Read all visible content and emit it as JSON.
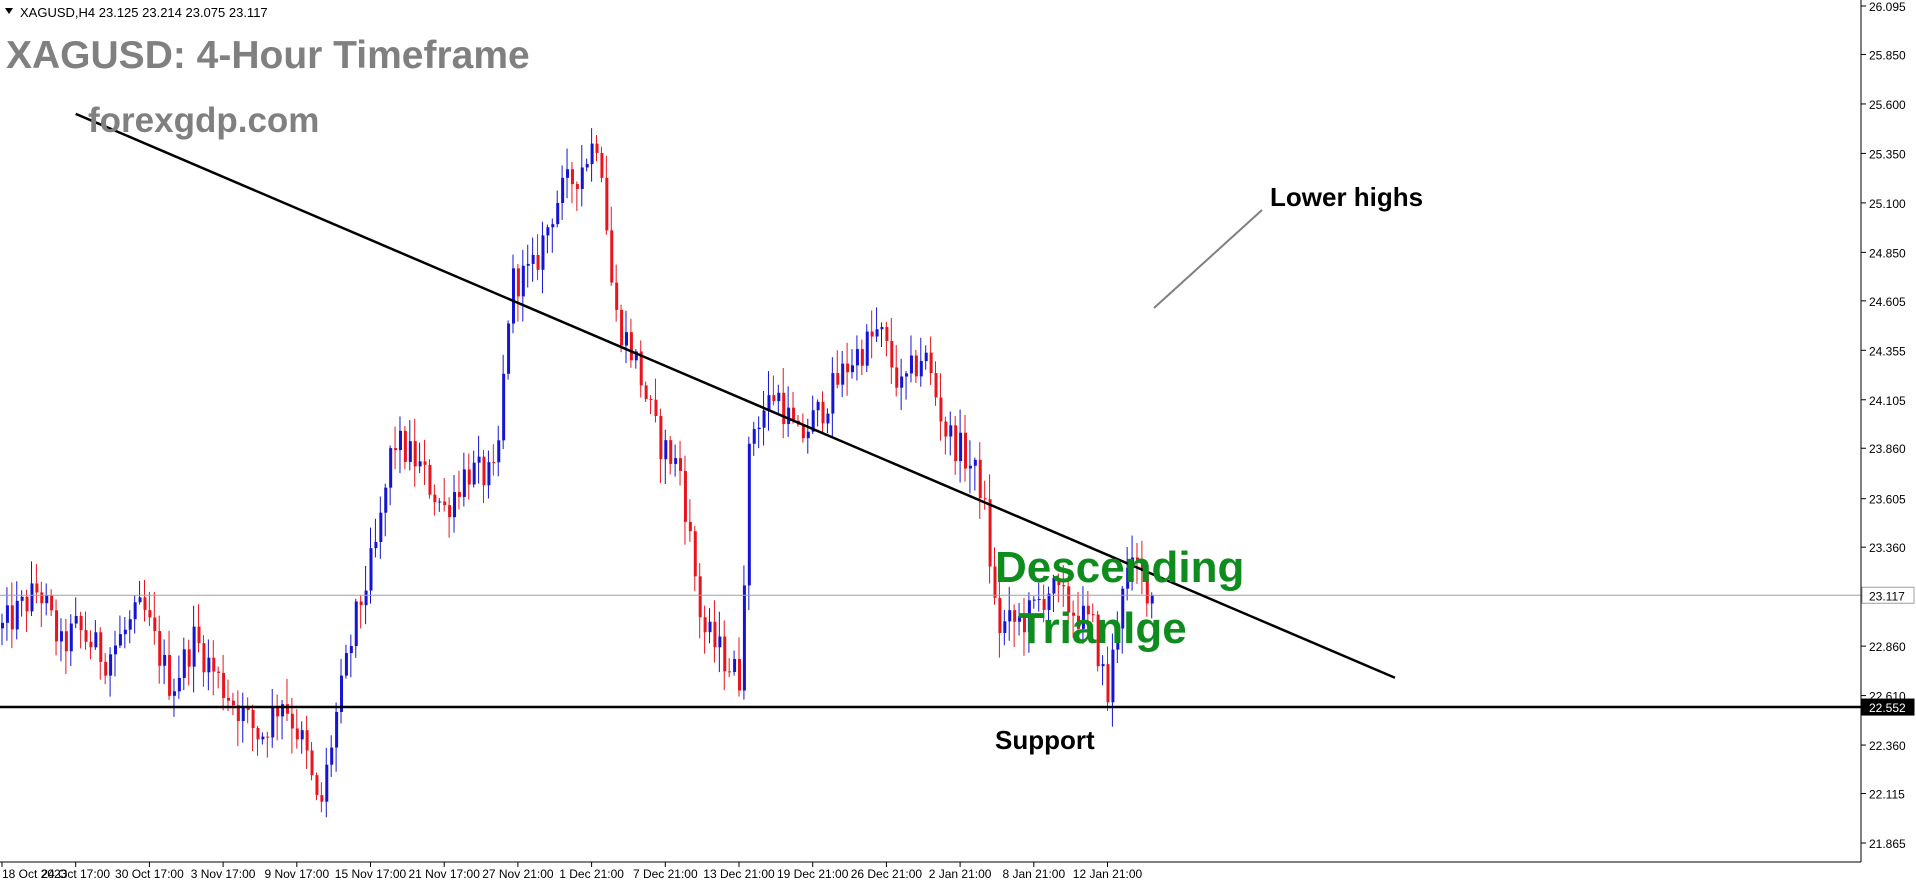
{
  "header": {
    "symbol_line": "XAGUSD,H4  23.125 23.214 23.075 23.117"
  },
  "overlay": {
    "title": "XAGUSD: 4-Hour Timeframe",
    "watermark": "forexgdp.com",
    "pattern_line1": "Descending",
    "pattern_line2": "Trianlge",
    "lower_highs_label": "Lower highs",
    "support_label": "Support"
  },
  "colors": {
    "bull": "#1414d2",
    "bear": "#e8141e",
    "pattern_text": "#0f8c1e",
    "title_text": "#808080",
    "axis": "#000000",
    "price_line": "#a0a0a0"
  },
  "chart_data": {
    "type": "candlestick",
    "title": "XAGUSD: 4-Hour Timeframe",
    "symbol": "XAGUSD",
    "timeframe": "H4",
    "ohlc_last": {
      "open": 23.125,
      "high": 23.214,
      "low": 23.075,
      "close": 23.117
    },
    "y_ticks": [
      26.095,
      25.85,
      25.6,
      25.35,
      25.1,
      24.85,
      24.605,
      24.355,
      24.105,
      23.86,
      23.605,
      23.36,
      23.117,
      22.86,
      22.61,
      22.552,
      22.36,
      22.115,
      21.865
    ],
    "ylim": [
      21.8,
      26.12
    ],
    "x_ticks": [
      "18 Oct 2023",
      "24 Oct 17:00",
      "30 Oct 17:00",
      "3 Nov 17:00",
      "9 Nov 17:00",
      "15 Nov 17:00",
      "21 Nov 17:00",
      "27 Nov 21:00",
      "1 Dec 21:00",
      "7 Dec 21:00",
      "13 Dec 21:00",
      "19 Dec 21:00",
      "26 Dec 21:00",
      "2 Jan 21:00",
      "8 Jan 21:00",
      "12 Jan 21:00"
    ],
    "current_price": 23.117,
    "support_level": 22.552,
    "trendline": {
      "start": {
        "x": 1.0,
        "price": 25.55
      },
      "end": {
        "x": 18.9,
        "price": 22.7
      }
    },
    "anchors": [
      {
        "x": 0.0,
        "price": 22.95
      },
      {
        "x": 0.5,
        "price": 23.15
      },
      {
        "x": 0.8,
        "price": 22.85
      },
      {
        "x": 1.0,
        "price": 22.95
      },
      {
        "x": 1.4,
        "price": 22.8
      },
      {
        "x": 1.9,
        "price": 23.05
      },
      {
        "x": 2.3,
        "price": 22.65
      },
      {
        "x": 2.6,
        "price": 22.9
      },
      {
        "x": 3.0,
        "price": 22.65
      },
      {
        "x": 3.5,
        "price": 22.4
      },
      {
        "x": 3.8,
        "price": 22.6
      },
      {
        "x": 4.1,
        "price": 22.35
      },
      {
        "x": 4.3,
        "price": 22.0
      },
      {
        "x": 4.5,
        "price": 22.45
      },
      {
        "x": 4.8,
        "price": 23.0
      },
      {
        "x": 5.1,
        "price": 23.4
      },
      {
        "x": 5.3,
        "price": 23.9
      },
      {
        "x": 5.6,
        "price": 23.8
      },
      {
        "x": 6.0,
        "price": 23.55
      },
      {
        "x": 6.3,
        "price": 23.75
      },
      {
        "x": 6.7,
        "price": 23.7
      },
      {
        "x": 6.9,
        "price": 24.7
      },
      {
        "x": 7.2,
        "price": 24.75
      },
      {
        "x": 7.5,
        "price": 25.1
      },
      {
        "x": 7.8,
        "price": 25.25
      },
      {
        "x": 8.1,
        "price": 25.45
      },
      {
        "x": 8.3,
        "price": 24.55
      },
      {
        "x": 8.6,
        "price": 24.3
      },
      {
        "x": 8.9,
        "price": 23.9
      },
      {
        "x": 9.2,
        "price": 23.75
      },
      {
        "x": 9.5,
        "price": 22.95
      },
      {
        "x": 9.9,
        "price": 22.75
      },
      {
        "x": 10.0,
        "price": 22.7
      },
      {
        "x": 10.15,
        "price": 23.95
      },
      {
        "x": 10.5,
        "price": 24.15
      },
      {
        "x": 10.8,
        "price": 23.9
      },
      {
        "x": 11.1,
        "price": 24.05
      },
      {
        "x": 11.5,
        "price": 24.3
      },
      {
        "x": 11.9,
        "price": 24.45
      },
      {
        "x": 12.2,
        "price": 24.15
      },
      {
        "x": 12.5,
        "price": 24.35
      },
      {
        "x": 12.8,
        "price": 23.95
      },
      {
        "x": 13.1,
        "price": 23.8
      },
      {
        "x": 13.3,
        "price": 23.65
      },
      {
        "x": 13.5,
        "price": 22.95
      },
      {
        "x": 13.9,
        "price": 23.0
      },
      {
        "x": 14.2,
        "price": 23.15
      },
      {
        "x": 14.5,
        "price": 23.05
      },
      {
        "x": 14.8,
        "price": 22.95
      },
      {
        "x": 15.0,
        "price": 22.6
      },
      {
        "x": 15.2,
        "price": 23.2
      },
      {
        "x": 15.4,
        "price": 23.25
      },
      {
        "x": 15.6,
        "price": 23.12
      }
    ]
  }
}
